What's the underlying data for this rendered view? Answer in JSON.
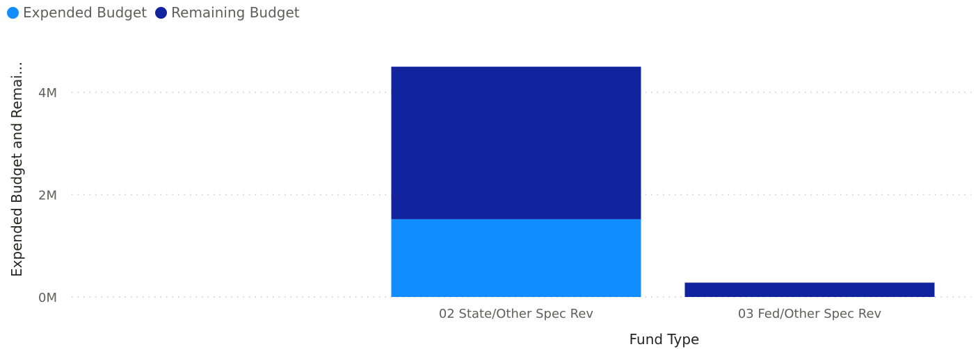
{
  "chart_data": {
    "type": "bar",
    "stacked": true,
    "categories": [
      "",
      "02 State/Other Spec Rev",
      "03 Fed/Other Spec Rev"
    ],
    "series": [
      {
        "name": "Expended Budget",
        "values": [
          0,
          1.52,
          0
        ],
        "color": "#118dff"
      },
      {
        "name": "Remaining Budget",
        "values": [
          0,
          2.98,
          0.28
        ],
        "color": "#12239e"
      }
    ],
    "xlabel": "Fund Type",
    "ylabel": "Expended Budget and Remai...",
    "yticks": [
      "0M",
      "2M",
      "4M"
    ],
    "ylim": [
      0,
      4.5
    ],
    "grid": true,
    "legend_position": "top-left"
  }
}
